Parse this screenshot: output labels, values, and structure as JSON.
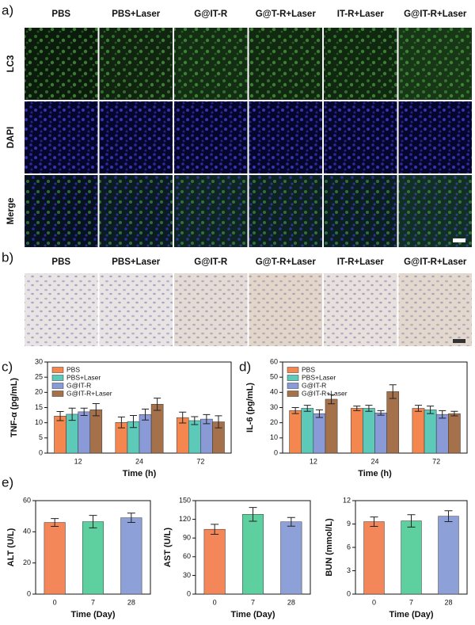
{
  "panel_labels": [
    "a)",
    "b)",
    "c)",
    "d)",
    "e)"
  ],
  "panel_a": {
    "columns": [
      "PBS",
      "PBS+Laser",
      "G@IT-R",
      "G@T-R+Laser",
      "IT-R+Laser",
      "G@IT-R+Laser"
    ],
    "rows": [
      "LC3",
      "DAPI",
      "Merge"
    ]
  },
  "panel_b": {
    "columns": [
      "PBS",
      "PBS+Laser",
      "G@IT-R",
      "G@T-R+Laser",
      "IT-R+Laser",
      "G@IT-R+Laser"
    ]
  },
  "chart_data": [
    {
      "type": "bar",
      "ylabel": "TNF-α (pg/mL)",
      "xlabel": "Time (h)",
      "categories": [
        "12",
        "24",
        "72"
      ],
      "ylim": [
        0,
        30
      ],
      "yticks": [
        0,
        5,
        10,
        15,
        20,
        25,
        30
      ],
      "legend": "upper left",
      "series": [
        {
          "name": "PBS",
          "color": "#f4874f",
          "values": [
            12.2,
            10.1,
            11.7
          ],
          "errors": [
            1.5,
            1.8,
            1.8
          ]
        },
        {
          "name": "PBS+Laser",
          "color": "#5cc9b9",
          "values": [
            12.8,
            10.4,
            10.7
          ],
          "errors": [
            2,
            2,
            1.3
          ]
        },
        {
          "name": "G@IT-R",
          "color": "#8a9ad6",
          "values": [
            13.6,
            12.7,
            11.2
          ],
          "errors": [
            1.2,
            1.8,
            1.5
          ]
        },
        {
          "name": "G@IT-R+Laser",
          "color": "#a5714a",
          "values": [
            14.3,
            16.1,
            10.3
          ],
          "errors": [
            2,
            2,
            2
          ]
        }
      ]
    },
    {
      "type": "bar",
      "ylabel": "IL-6 (pg/mL)",
      "xlabel": "Time (h)",
      "categories": [
        "12",
        "24",
        "72"
      ],
      "ylim": [
        0,
        60
      ],
      "yticks": [
        0,
        10,
        20,
        30,
        40,
        50,
        60
      ],
      "legend": "upper left",
      "series": [
        {
          "name": "PBS",
          "color": "#f4874f",
          "values": [
            28,
            29.5,
            29.5
          ],
          "errors": [
            2,
            1.5,
            2
          ]
        },
        {
          "name": "PBS+Laser",
          "color": "#5cc9b9",
          "values": [
            29.5,
            29.5,
            28.5
          ],
          "errors": [
            2,
            2,
            2.5
          ]
        },
        {
          "name": "G@IT-R",
          "color": "#8a9ad6",
          "values": [
            26,
            26.5,
            25.5
          ],
          "errors": [
            2.5,
            1.5,
            2.5
          ]
        },
        {
          "name": "G@IT-R+Laser",
          "color": "#a5714a",
          "values": [
            35.5,
            40.5,
            26
          ],
          "errors": [
            3,
            4.5,
            1.5
          ]
        }
      ]
    },
    {
      "type": "bar",
      "ylabel": "ALT (U/L)",
      "xlabel": "Time (Day)",
      "categories": [
        "0",
        "7",
        "28"
      ],
      "ylim": [
        0,
        60
      ],
      "yticks": [
        0,
        20,
        40,
        60
      ],
      "values": [
        46,
        46.5,
        49
      ],
      "errors": [
        2.5,
        4,
        3
      ],
      "colors": [
        "#f4875a",
        "#5ecf9f",
        "#8da0d8"
      ]
    },
    {
      "type": "bar",
      "ylabel": "AST (U/L)",
      "xlabel": "Time (Day)",
      "categories": [
        "0",
        "7",
        "28"
      ],
      "ylim": [
        0,
        150
      ],
      "yticks": [
        0,
        30,
        60,
        90,
        120,
        150
      ],
      "values": [
        104,
        128,
        116
      ],
      "errors": [
        8,
        11,
        7
      ],
      "colors": [
        "#f4875a",
        "#5ecf9f",
        "#8da0d8"
      ]
    },
    {
      "type": "bar",
      "ylabel": "BUN (mmol/L)",
      "xlabel": "Time (Day)",
      "categories": [
        "0",
        "7",
        "28"
      ],
      "ylim": [
        0,
        12
      ],
      "yticks": [
        0,
        3,
        6,
        9,
        12
      ],
      "values": [
        9.3,
        9.4,
        10
      ],
      "errors": [
        0.6,
        0.8,
        0.7
      ],
      "colors": [
        "#f4875a",
        "#5ecf9f",
        "#8da0d8"
      ]
    }
  ]
}
